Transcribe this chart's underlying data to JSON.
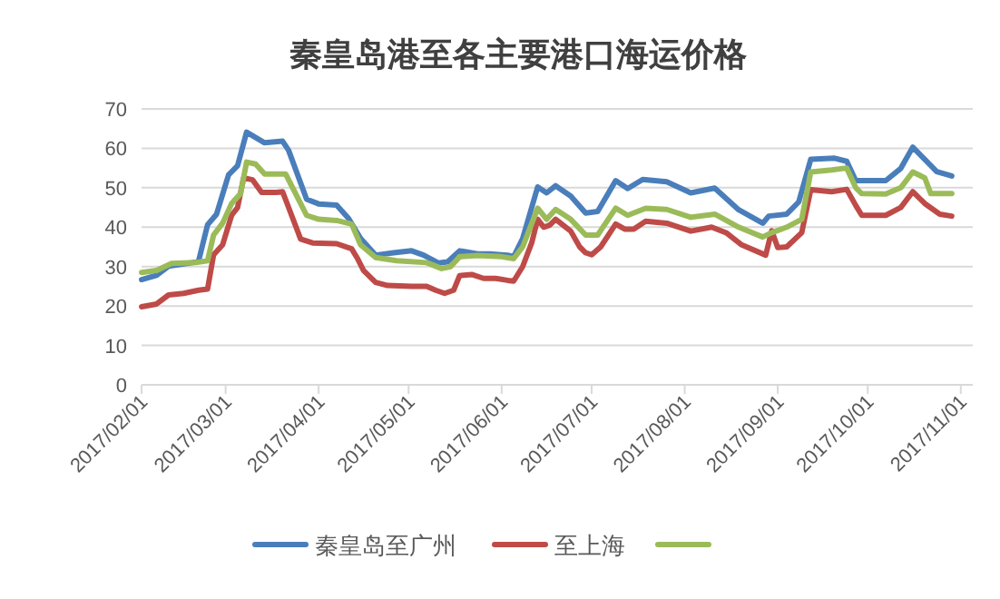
{
  "chart_data": {
    "type": "line",
    "title": "秦皇岛港至各主要港口海运价格",
    "xlim": [
      "2017-02-01",
      "2017-11-05"
    ],
    "xticks": [
      {
        "value": "2017-02-01",
        "label": "2017/02/01"
      },
      {
        "value": "2017-03-01",
        "label": "2017/03/01"
      },
      {
        "value": "2017-04-01",
        "label": "2017/04/01"
      },
      {
        "value": "2017-05-01",
        "label": "2017/05/01"
      },
      {
        "value": "2017-06-01",
        "label": "2017/06/01"
      },
      {
        "value": "2017-07-01",
        "label": "2017/07/01"
      },
      {
        "value": "2017-08-01",
        "label": "2017/08/01"
      },
      {
        "value": "2017-09-01",
        "label": "2017/09/01"
      },
      {
        "value": "2017-10-01",
        "label": "2017/10/01"
      },
      {
        "value": "2017-11-01",
        "label": "2017/11/01"
      }
    ],
    "ylim": [
      0,
      70
    ],
    "yticks": [
      0,
      10,
      20,
      30,
      40,
      50,
      60,
      70
    ],
    "grid": "y",
    "legend": "bottom",
    "marker": "none",
    "line_style": "solid",
    "series": [
      {
        "name": "秦皇岛至广州",
        "color": "#4a7ebb",
        "x": [
          "2017-02-01",
          "2017-02-06",
          "2017-02-10",
          "2017-02-18",
          "2017-02-20",
          "2017-02-23",
          "2017-02-26",
          "2017-03-02",
          "2017-03-05",
          "2017-03-08",
          "2017-03-14",
          "2017-03-20",
          "2017-03-22",
          "2017-03-28",
          "2017-04-01",
          "2017-04-07",
          "2017-04-11",
          "2017-04-15",
          "2017-04-20",
          "2017-04-26",
          "2017-05-02",
          "2017-05-06",
          "2017-05-11",
          "2017-05-14",
          "2017-05-18",
          "2017-05-24",
          "2017-05-28",
          "2017-06-03",
          "2017-06-05",
          "2017-06-08",
          "2017-06-13",
          "2017-06-16",
          "2017-06-19",
          "2017-06-24",
          "2017-06-29",
          "2017-07-03",
          "2017-07-09",
          "2017-07-13",
          "2017-07-18",
          "2017-07-26",
          "2017-08-03",
          "2017-08-11",
          "2017-08-19",
          "2017-08-27",
          "2017-08-29",
          "2017-09-04",
          "2017-09-08",
          "2017-09-12",
          "2017-09-20",
          "2017-09-24",
          "2017-09-27",
          "2017-10-07",
          "2017-10-12",
          "2017-10-16",
          "2017-10-20",
          "2017-10-24",
          "2017-10-29"
        ],
        "values": [
          26.7,
          27.8,
          30.1,
          31,
          31.4,
          40.6,
          43.3,
          53.3,
          55.6,
          64.1,
          61.4,
          61.8,
          59.5,
          47.1,
          45.9,
          45.6,
          42.2,
          37.1,
          32.9,
          33.5,
          34,
          32.9,
          30.9,
          31.2,
          34,
          33.2,
          33.2,
          32.9,
          32.5,
          37.1,
          50.2,
          48.7,
          50.5,
          47.9,
          43.6,
          44,
          51.8,
          49.8,
          52.1,
          51.5,
          48.7,
          49.9,
          44.4,
          41,
          42.8,
          43.3,
          46.4,
          57.2,
          57.5,
          56.7,
          51.8,
          51.8,
          54.9,
          60.3,
          57.2,
          54.1,
          53
        ]
      },
      {
        "name": "至上海",
        "color": "#be4b48",
        "x": [
          "2017-02-01",
          "2017-02-06",
          "2017-02-10",
          "2017-02-15",
          "2017-02-20",
          "2017-02-23",
          "2017-02-25",
          "2017-02-28",
          "2017-03-03",
          "2017-03-05",
          "2017-03-07",
          "2017-03-10",
          "2017-03-13",
          "2017-03-18",
          "2017-03-20",
          "2017-03-23",
          "2017-03-26",
          "2017-03-30",
          "2017-04-07",
          "2017-04-12",
          "2017-04-14",
          "2017-04-16",
          "2017-04-20",
          "2017-04-24",
          "2017-05-02",
          "2017-05-07",
          "2017-05-10",
          "2017-05-13",
          "2017-05-16",
          "2017-05-18",
          "2017-05-22",
          "2017-05-26",
          "2017-05-30",
          "2017-06-03",
          "2017-06-05",
          "2017-06-08",
          "2017-06-11",
          "2017-06-13",
          "2017-06-15",
          "2017-06-17",
          "2017-06-19",
          "2017-06-24",
          "2017-06-27",
          "2017-06-29",
          "2017-07-01",
          "2017-07-04",
          "2017-07-09",
          "2017-07-12",
          "2017-07-15",
          "2017-07-19",
          "2017-07-26",
          "2017-08-03",
          "2017-08-10",
          "2017-08-15",
          "2017-08-20",
          "2017-08-28",
          "2017-08-30",
          "2017-09-01",
          "2017-09-04",
          "2017-09-09",
          "2017-09-12",
          "2017-09-19",
          "2017-09-24",
          "2017-09-27",
          "2017-09-29",
          "2017-10-07",
          "2017-10-12",
          "2017-10-16",
          "2017-10-20",
          "2017-10-25",
          "2017-10-29"
        ],
        "values": [
          19.8,
          20.5,
          22.8,
          23.2,
          24,
          24.3,
          33,
          35.5,
          43,
          45,
          52.5,
          52,
          48.8,
          48.8,
          49,
          43,
          37,
          36,
          35.8,
          34.5,
          32,
          29,
          26,
          25.2,
          25,
          25,
          24,
          23.2,
          24,
          27.7,
          28,
          27,
          27,
          26.5,
          26.3,
          30,
          36,
          42,
          40,
          40.5,
          42,
          39,
          35,
          33.5,
          33,
          35,
          40.8,
          39.5,
          39.5,
          41.5,
          41,
          39,
          40,
          38.5,
          35.5,
          32.9,
          39.1,
          34.8,
          35,
          38.6,
          49.5,
          49,
          49.6,
          45.5,
          43,
          43,
          45,
          49,
          46,
          43.3,
          42.8
        ]
      },
      {
        "color": "#9bbb59",
        "x": [
          "2017-02-01",
          "2017-02-06",
          "2017-02-11",
          "2017-02-19",
          "2017-02-23",
          "2017-02-25",
          "2017-02-28",
          "2017-03-03",
          "2017-03-06",
          "2017-03-08",
          "2017-03-11",
          "2017-03-14",
          "2017-03-18",
          "2017-03-21",
          "2017-03-24",
          "2017-03-28",
          "2017-04-01",
          "2017-04-07",
          "2017-04-12",
          "2017-04-15",
          "2017-04-20",
          "2017-04-27",
          "2017-05-07",
          "2017-05-12",
          "2017-05-15",
          "2017-05-18",
          "2017-05-24",
          "2017-06-01",
          "2017-06-05",
          "2017-06-08",
          "2017-06-13",
          "2017-06-16",
          "2017-06-19",
          "2017-06-24",
          "2017-06-29",
          "2017-07-03",
          "2017-07-09",
          "2017-07-13",
          "2017-07-19",
          "2017-07-26",
          "2017-08-03",
          "2017-08-11",
          "2017-08-19",
          "2017-08-27",
          "2017-08-30",
          "2017-09-04",
          "2017-09-09",
          "2017-09-12",
          "2017-09-19",
          "2017-09-24",
          "2017-09-27",
          "2017-09-29",
          "2017-10-07",
          "2017-10-12",
          "2017-10-16",
          "2017-10-20",
          "2017-10-22",
          "2017-10-29"
        ],
        "values": [
          28.5,
          29,
          30.8,
          31,
          31.5,
          38,
          41,
          46,
          48.5,
          56.5,
          56,
          53.5,
          53.5,
          53.5,
          49,
          43,
          42,
          41.7,
          40.8,
          35.5,
          32.3,
          31.5,
          31,
          29.5,
          30,
          32.5,
          32.8,
          32.5,
          32,
          35,
          44.8,
          42,
          44.5,
          42,
          38,
          38,
          44.8,
          43,
          44.8,
          44.5,
          42.5,
          43.3,
          40,
          37.5,
          38.6,
          40,
          42,
          54,
          54.5,
          55,
          50,
          48.5,
          48.4,
          50,
          54,
          52.5,
          48.5,
          48.5
        ]
      }
    ]
  }
}
